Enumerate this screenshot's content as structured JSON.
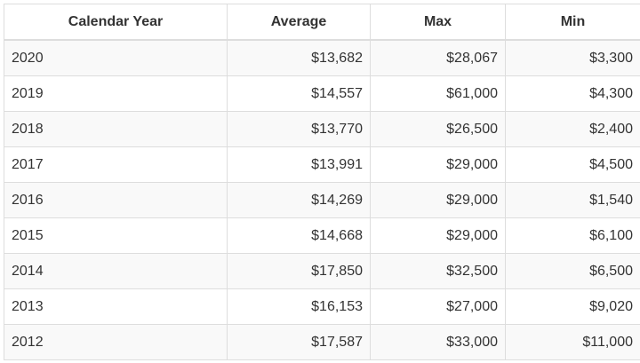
{
  "table": {
    "headers": [
      "Calendar Year",
      "Average",
      "Max",
      "Min"
    ],
    "rows": [
      {
        "year": "2020",
        "average": "$13,682",
        "max": "$28,067",
        "min": "$3,300"
      },
      {
        "year": "2019",
        "average": "$14,557",
        "max": "$61,000",
        "min": "$4,300"
      },
      {
        "year": "2018",
        "average": "$13,770",
        "max": "$26,500",
        "min": "$2,400"
      },
      {
        "year": "2017",
        "average": "$13,991",
        "max": "$29,000",
        "min": "$4,500"
      },
      {
        "year": "2016",
        "average": "$14,269",
        "max": "$29,000",
        "min": "$1,540"
      },
      {
        "year": "2015",
        "average": "$14,668",
        "max": "$29,000",
        "min": "$6,100"
      },
      {
        "year": "2014",
        "average": "$17,850",
        "max": "$32,500",
        "min": "$6,500"
      },
      {
        "year": "2013",
        "average": "$16,153",
        "max": "$27,000",
        "min": "$9,020"
      },
      {
        "year": "2012",
        "average": "$17,587",
        "max": "$33,000",
        "min": "$11,000"
      }
    ]
  },
  "colors": {
    "border": "#dddddd",
    "stripe": "#f9f9f9",
    "text": "#333333"
  }
}
